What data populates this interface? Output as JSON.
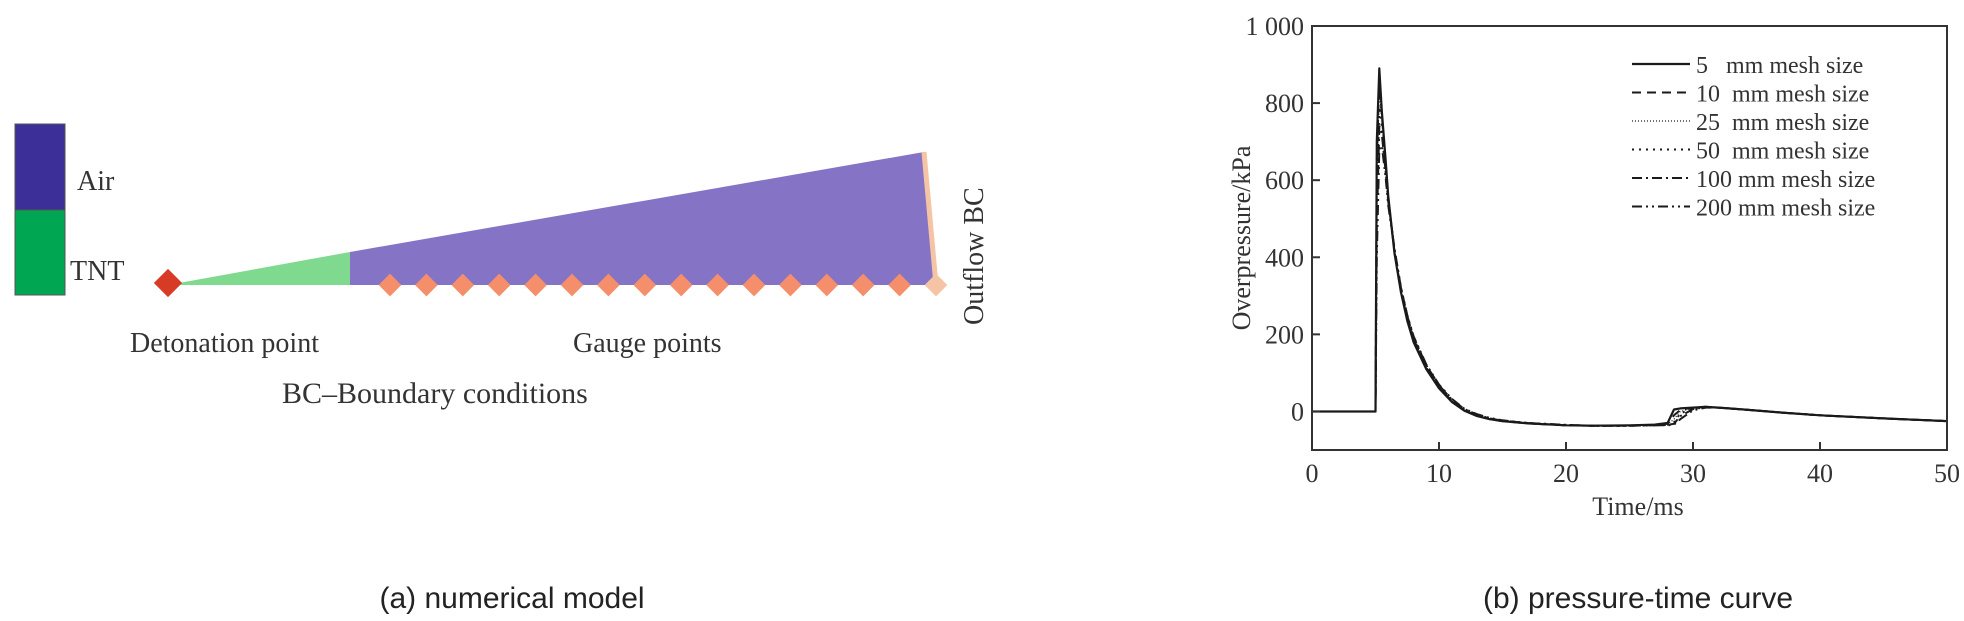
{
  "panel_a": {
    "legend": {
      "air_label": "Air",
      "tnt_label": "TNT"
    },
    "detonation_label": "Detonation point",
    "gauge_label": "Gauge points",
    "outflow_label": "Outflow  BC",
    "bc_note": "BC–Boundary conditions",
    "caption": "(a) numerical model",
    "gauge_count": 16,
    "colors": {
      "air_legend": "#3d2f98",
      "tnt_legend": "#00a651",
      "air_region": "#8573c6",
      "tnt_region": "#7fd98f",
      "detonation": "#d83b25",
      "gauge": "#f58e6a",
      "outflow": "#f5c4a4"
    }
  },
  "panel_b": {
    "caption": "(b) pressure-time curve",
    "chart_data": {
      "type": "line",
      "xlabel": "Time/ms",
      "ylabel": "Overpressure/kPa",
      "xlim": [
        0,
        50
      ],
      "ylim": [
        -100,
        1000
      ],
      "xticks": [
        0,
        10,
        20,
        30,
        40,
        50
      ],
      "xtick_labels": [
        "0",
        "10",
        "20",
        "30",
        "40",
        "50"
      ],
      "yticks": [
        0,
        200,
        400,
        600,
        800,
        1000
      ],
      "ytick_labels": [
        "0",
        "200",
        "400",
        "600",
        "800",
        "1 000"
      ],
      "legend_position": "top-right",
      "series": [
        {
          "name": "5   mm mesh size",
          "style": "solid",
          "x": [
            0,
            4.9,
            5.0,
            5.1,
            5.3,
            5.5,
            5.8,
            6.0,
            6.5,
            7.0,
            7.5,
            8.0,
            9.0,
            10.0,
            11.0,
            12.0,
            13.0,
            14.0,
            15.0,
            17.0,
            20.0,
            22.0,
            25.0,
            27.0,
            28.0,
            28.5,
            29.0,
            30.0,
            31.0,
            32.0,
            34.0,
            37.0,
            40.0,
            45.0,
            50.0
          ],
          "y": [
            0,
            0,
            0,
            700,
            890,
            780,
            650,
            560,
            410,
            310,
            235,
            180,
            110,
            60,
            25,
            2,
            -12,
            -20,
            -25,
            -31,
            -36,
            -37,
            -36,
            -34,
            -30,
            5,
            8,
            10,
            12,
            10,
            5,
            -3,
            -10,
            -18,
            -25
          ]
        },
        {
          "name": "10  mm mesh size",
          "style": "dashed",
          "x": [
            0,
            4.9,
            5.0,
            5.1,
            5.3,
            5.5,
            5.8,
            6.0,
            6.5,
            7.0,
            7.5,
            8.0,
            9.0,
            10.0,
            11.0,
            12.0,
            13.0,
            14.0,
            15.0,
            17.0,
            20.0,
            22.0,
            25.0,
            27.0,
            28.0,
            28.5,
            29.0,
            30.0,
            31.0,
            32.0,
            34.0,
            37.0,
            40.0,
            45.0,
            50.0
          ],
          "y": [
            0,
            0,
            0,
            650,
            860,
            770,
            640,
            555,
            415,
            315,
            240,
            185,
            113,
            62,
            27,
            3,
            -11,
            -20,
            -25,
            -31,
            -36,
            -37,
            -37,
            -35,
            -32,
            -10,
            4,
            10,
            12,
            10,
            5,
            -3,
            -10,
            -18,
            -25
          ]
        },
        {
          "name": "25  mm mesh size",
          "style": "fine-dotted",
          "x": [
            0,
            4.9,
            5.0,
            5.1,
            5.3,
            5.5,
            5.8,
            6.0,
            6.5,
            7.0,
            7.5,
            8.0,
            9.0,
            10.0,
            11.0,
            12.0,
            13.0,
            14.0,
            15.0,
            17.0,
            20.0,
            22.0,
            25.0,
            27.0,
            28.0,
            28.5,
            29.0,
            30.0,
            31.0,
            32.0,
            34.0,
            37.0,
            40.0,
            45.0,
            50.0
          ],
          "y": [
            0,
            0,
            0,
            600,
            830,
            760,
            640,
            555,
            418,
            318,
            243,
            188,
            116,
            64,
            28,
            4,
            -10,
            -19,
            -25,
            -31,
            -36,
            -37,
            -37,
            -36,
            -33,
            -20,
            0,
            9,
            12,
            10,
            5,
            -3,
            -10,
            -18,
            -25
          ]
        },
        {
          "name": "50  mm mesh size",
          "style": "dotted",
          "x": [
            0,
            4.9,
            5.0,
            5.1,
            5.3,
            5.5,
            5.8,
            6.0,
            6.5,
            7.0,
            7.5,
            8.0,
            9.0,
            10.0,
            11.0,
            12.0,
            13.0,
            14.0,
            15.0,
            17.0,
            20.0,
            22.0,
            25.0,
            27.0,
            28.0,
            28.5,
            29.0,
            30.0,
            31.0,
            32.0,
            34.0,
            37.0,
            40.0,
            45.0,
            50.0
          ],
          "y": [
            0,
            0,
            0,
            550,
            790,
            740,
            630,
            550,
            420,
            320,
            245,
            190,
            118,
            66,
            30,
            5,
            -9,
            -19,
            -24,
            -31,
            -36,
            -37,
            -37,
            -36,
            -34,
            -28,
            -5,
            8,
            12,
            10,
            5,
            -3,
            -10,
            -18,
            -25
          ]
        },
        {
          "name": "100 mm mesh size",
          "style": "dash-dot",
          "x": [
            0,
            4.9,
            5.0,
            5.1,
            5.3,
            5.5,
            5.8,
            6.0,
            6.5,
            7.0,
            7.5,
            8.0,
            9.0,
            10.0,
            11.0,
            12.0,
            13.0,
            14.0,
            15.0,
            17.0,
            20.0,
            22.0,
            25.0,
            27.0,
            28.0,
            28.5,
            29.0,
            30.0,
            31.0,
            32.0,
            34.0,
            37.0,
            40.0,
            45.0,
            50.0
          ],
          "y": [
            0,
            0,
            0,
            480,
            740,
            720,
            620,
            545,
            422,
            322,
            248,
            193,
            120,
            68,
            31,
            6,
            -8,
            -18,
            -24,
            -30,
            -35,
            -37,
            -37,
            -36,
            -35,
            -32,
            -12,
            6,
            11,
            10,
            5,
            -3,
            -10,
            -18,
            -25
          ]
        },
        {
          "name": "200 mm mesh size",
          "style": "dash-dot-dot",
          "x": [
            0,
            4.9,
            5.0,
            5.1,
            5.3,
            5.5,
            5.8,
            6.0,
            6.5,
            7.0,
            7.5,
            8.0,
            9.0,
            10.0,
            11.0,
            12.0,
            13.0,
            14.0,
            15.0,
            17.0,
            20.0,
            22.0,
            25.0,
            27.0,
            28.0,
            28.5,
            29.0,
            30.0,
            31.0,
            32.0,
            34.0,
            37.0,
            40.0,
            45.0,
            50.0
          ],
          "y": [
            0,
            0,
            0,
            400,
            680,
            690,
            605,
            535,
            420,
            322,
            250,
            195,
            122,
            70,
            33,
            7,
            -7,
            -17,
            -23,
            -30,
            -35,
            -37,
            -37,
            -36,
            -36,
            -34,
            -20,
            3,
            10,
            10,
            5,
            -3,
            -10,
            -18,
            -25
          ]
        }
      ]
    }
  }
}
